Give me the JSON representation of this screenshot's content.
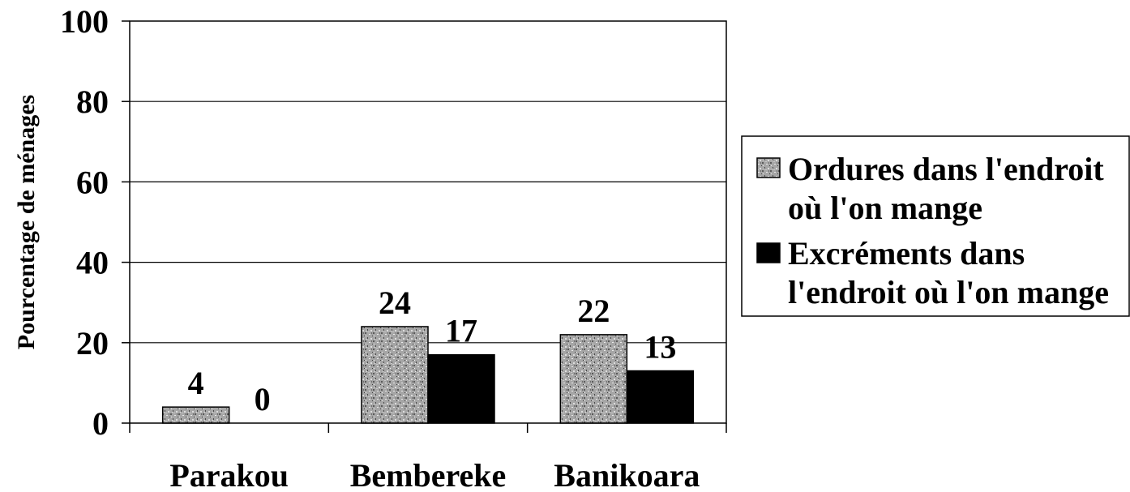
{
  "chart_data": {
    "type": "bar",
    "ylabel": "Pourcentage de ménages",
    "xlabel": "",
    "ylim": [
      0,
      100
    ],
    "yticks": [
      "0",
      "20",
      "40",
      "60",
      "80",
      "100"
    ],
    "grid": true,
    "legend_position": "right",
    "categories": [
      "Parakou",
      "Bembereke",
      "Banikoara"
    ],
    "series": [
      {
        "name": "Ordures dans l'endroit où l'on mange",
        "name_lines": [
          "Ordures dans l'endroit",
          "où l'on mange"
        ],
        "values": [
          4,
          24,
          22
        ],
        "labels": [
          "4",
          "24",
          "22"
        ],
        "fill": "pattern-gray"
      },
      {
        "name": "Excréments dans l'endroit où l'on mange",
        "name_lines": [
          "Excréments dans",
          "l'endroit où l'on mange"
        ],
        "values": [
          0,
          17,
          13
        ],
        "labels": [
          "0",
          "17",
          "13"
        ],
        "fill": "#000000"
      }
    ]
  }
}
